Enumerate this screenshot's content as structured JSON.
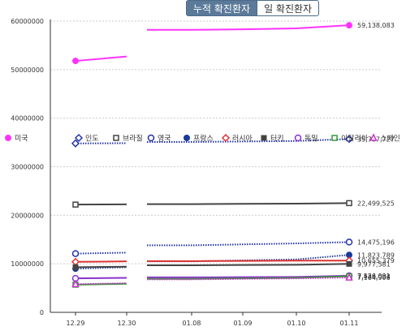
{
  "toggle": {
    "cumulative_label": "누적 확진환자",
    "daily_label": "일 확진환자"
  },
  "chart_data": {
    "type": "line",
    "categories": [
      "12.29",
      "12.30",
      "01.08",
      "01.09",
      "01.10",
      "01.11"
    ],
    "ylim": [
      0,
      60000000
    ],
    "yticks": [
      0,
      10000000,
      20000000,
      30000000,
      40000000,
      50000000,
      60000000
    ],
    "ytick_labels": [
      "0",
      "10000000",
      "20000000",
      "30000000",
      "40000000",
      "50000000",
      "60000000"
    ],
    "grid": true,
    "legend_position": "middle-left",
    "series": [
      {
        "name": "미국",
        "color": "#ff33ff",
        "marker": "circle-filled",
        "style": "solid",
        "values": [
          51800000,
          52700000,
          58200000,
          58300000,
          58500000,
          59138083
        ],
        "end_label": "59,138,083"
      },
      {
        "name": "인도",
        "color": "#2233aa",
        "marker": "diamond-open",
        "style": "dotted",
        "values": [
          34800000,
          34850000,
          35100000,
          35200000,
          35300000,
          35707727
        ],
        "end_label": "35,707,727"
      },
      {
        "name": "브라질",
        "color": "#444444",
        "marker": "square-open",
        "style": "solid",
        "values": [
          22200000,
          22250000,
          22300000,
          22350000,
          22400000,
          22499525
        ],
        "end_label": "22,499,525"
      },
      {
        "name": "영국",
        "color": "#2233aa",
        "marker": "circle-open",
        "style": "dotted",
        "values": [
          12100000,
          12300000,
          13800000,
          14000000,
          14200000,
          14475196
        ],
        "end_label": "14,475,196"
      },
      {
        "name": "프랑스",
        "color": "#1a3a99",
        "marker": "circle-filled",
        "style": "dotted",
        "values": [
          9000000,
          9300000,
          10500000,
          10700000,
          10900000,
          11823789
        ],
        "end_label": "11,823,789"
      },
      {
        "name": "러시아",
        "color": "#dd3333",
        "marker": "diamond-open",
        "style": "solid",
        "values": [
          10400000,
          10500000,
          10550000,
          10600000,
          10650000,
          10655379
        ],
        "end_label": "10,655,379"
      },
      {
        "name": "터키",
        "color": "#444444",
        "marker": "square-filled",
        "style": "solid",
        "values": [
          9300000,
          9400000,
          9700000,
          9750000,
          9800000,
          9977581
        ],
        "end_label": "9,977,581"
      },
      {
        "name": "독일",
        "color": "#8833cc",
        "marker": "circle-open",
        "style": "solid",
        "values": [
          7000000,
          7100000,
          7200000,
          7250000,
          7300000,
          7536001
        ],
        "end_label": "7,536,001"
      },
      {
        "name": "이탈리아",
        "color": "#339933",
        "marker": "square-open",
        "style": "solid",
        "values": [
          5700000,
          5900000,
          6900000,
          7000000,
          7100000,
          7433033
        ],
        "end_label": "7,433,033"
      },
      {
        "name": "스페인",
        "color": "#cc33cc",
        "marker": "triangle-open",
        "style": "dotted",
        "values": [
          5800000,
          6000000,
          6800000,
          6900000,
          7000000,
          7164906
        ],
        "end_label": "7,164,906"
      }
    ]
  }
}
